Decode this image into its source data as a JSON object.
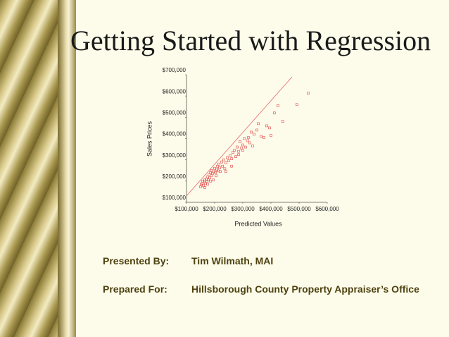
{
  "slide": {
    "title": "Getting Started with Regression",
    "presented_by_label": "Presented By:",
    "presented_by": "Tim Wilmath, MAI",
    "prepared_for_label": "Prepared For:",
    "prepared_for": "Hillsborough County Property Appraiser’s Office"
  },
  "chart_data": {
    "type": "scatter",
    "x_label": "Predicted Values",
    "y_label": "Sales Prices",
    "color": "#e04848",
    "x": [
      150000,
      152000,
      155000,
      158000,
      160000,
      162000,
      165000,
      168000,
      170000,
      172000,
      175000,
      178000,
      180000,
      183000,
      185000,
      188000,
      190000,
      192000,
      195000,
      198000,
      200000,
      203000,
      205000,
      208000,
      210000,
      212000,
      215000,
      218000,
      220000,
      225000,
      228000,
      232000,
      236000,
      240000,
      245000,
      250000,
      255000,
      260000,
      265000,
      270000,
      275000,
      280000,
      285000,
      290000,
      295000,
      300000,
      305000,
      310000,
      318000,
      325000,
      330000,
      335000,
      340000,
      350000,
      355000,
      365000,
      375000,
      385000,
      395000,
      400000,
      412000,
      425000,
      442000,
      492000,
      532000,
      240000,
      260000,
      285000,
      300000,
      320000,
      165000,
      175000,
      185000
    ],
    "y": [
      173000,
      182000,
      190000,
      200000,
      178000,
      195000,
      205000,
      188000,
      210000,
      198000,
      220000,
      205000,
      230000,
      215000,
      240000,
      225000,
      250000,
      235000,
      205000,
      245000,
      260000,
      240000,
      225000,
      255000,
      270000,
      248000,
      280000,
      262000,
      245000,
      290000,
      270000,
      300000,
      258000,
      285000,
      310000,
      295000,
      320000,
      305000,
      335000,
      345000,
      315000,
      360000,
      340000,
      385000,
      355000,
      370000,
      400000,
      360000,
      390000,
      380000,
      430000,
      365000,
      420000,
      440000,
      470000,
      410000,
      405000,
      460000,
      450000,
      415000,
      520000,
      554000,
      481000,
      560000,
      613000,
      245000,
      270000,
      325000,
      345000,
      405000,
      170000,
      185000,
      200000
    ],
    "fit_line": {
      "color": "#e87878",
      "x": [
        100000,
        475000
      ],
      "y": [
        130000,
        690000
      ]
    },
    "xlim": [
      100000,
      600000
    ],
    "ylim": [
      100000,
      700000
    ],
    "xticks": [
      {
        "value": 100000,
        "label": "$100,000"
      },
      {
        "value": 200000,
        "label": "$200,000"
      },
      {
        "value": 300000,
        "label": "$300,000"
      },
      {
        "value": 400000,
        "label": "$400,000"
      },
      {
        "value": 500000,
        "label": "$500,000"
      },
      {
        "value": 600000,
        "label": "$600,000"
      }
    ],
    "yticks": [
      {
        "value": 100000,
        "label": "$100,000"
      },
      {
        "value": 200000,
        "label": "$200,000"
      },
      {
        "value": 300000,
        "label": "$300,000"
      },
      {
        "value": 400000,
        "label": "$400,000"
      },
      {
        "value": 500000,
        "label": "$500,000"
      },
      {
        "value": 600000,
        "label": "$600,000"
      },
      {
        "value": 700000,
        "label": "$700,000"
      }
    ]
  }
}
